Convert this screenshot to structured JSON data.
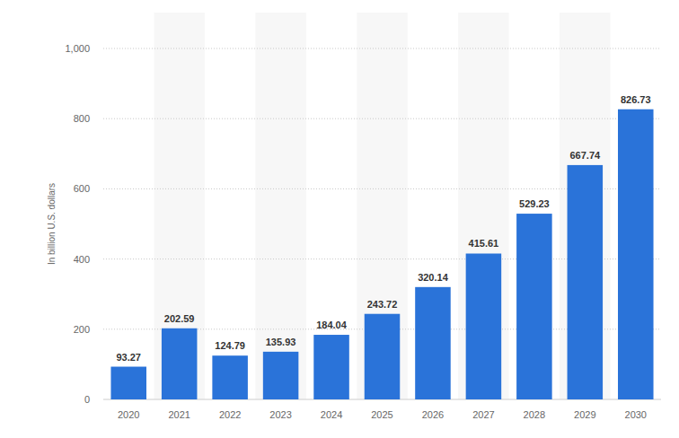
{
  "chart_data": {
    "type": "bar",
    "y_label": "In billion U.S. dollars",
    "categories": [
      "2020",
      "2021",
      "2022",
      "2023",
      "2024",
      "2025",
      "2026",
      "2027",
      "2028",
      "2029",
      "2030"
    ],
    "values": [
      93.27,
      202.59,
      124.79,
      135.93,
      184.04,
      243.72,
      320.14,
      415.61,
      529.23,
      667.74,
      826.73
    ],
    "color": "#2a73d9",
    "ylim": [
      0,
      1000
    ],
    "yticks": [
      0,
      200,
      400,
      600,
      800,
      {
        "value": 1000,
        "label": "1,000"
      }
    ],
    "grid": true,
    "data_labels": true
  }
}
